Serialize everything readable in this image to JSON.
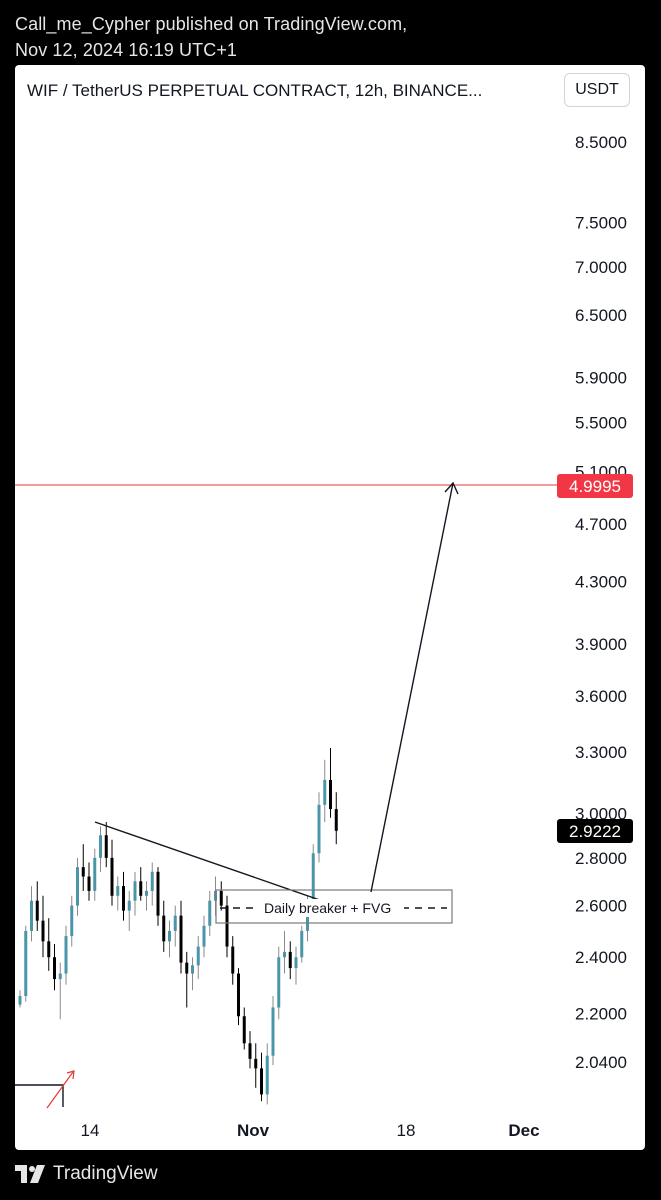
{
  "publisher": {
    "line1": "Call_me_Cypher published on TradingView.com,",
    "line2": "Nov 12, 2024 16:19 UTC+1"
  },
  "header": {
    "symbol_title": "WIF / TetherUS PERPETUAL CONTRACT, 12h, BINANCE...",
    "currency": "USDT"
  },
  "footer": {
    "brand": "TradingView"
  },
  "colors": {
    "bull": "#4a95a8",
    "bear": "#000000",
    "level_line": "#e53935",
    "level_label_bg": "#f23645",
    "price_label_bg": "#000000"
  },
  "chart_data": {
    "type": "candlestick",
    "interval": "12h",
    "y_scale": "log",
    "y_tick_labels": [
      "8.5000",
      "7.5000",
      "7.0000",
      "6.5000",
      "5.9000",
      "5.5000",
      "5.1000",
      "4.7000",
      "4.3000",
      "3.9000",
      "3.6000",
      "3.3000",
      "3.0000",
      "2.8000",
      "2.6000",
      "2.4000",
      "2.2000",
      "2.0400"
    ],
    "x_tick_labels": [
      "14",
      "Nov",
      "18",
      "Dec"
    ],
    "last_price": "2.9222",
    "level_price": "4.9995",
    "annotations": {
      "zone_label": "Daily breaker + FVG"
    },
    "candles": [
      [
        2.23,
        2.28,
        2.22,
        2.26
      ],
      [
        2.26,
        2.52,
        2.24,
        2.5
      ],
      [
        2.5,
        2.68,
        2.46,
        2.62
      ],
      [
        2.62,
        2.7,
        2.5,
        2.54
      ],
      [
        2.54,
        2.64,
        2.4,
        2.46
      ],
      [
        2.46,
        2.55,
        2.35,
        2.4
      ],
      [
        2.4,
        2.45,
        2.28,
        2.32
      ],
      [
        2.32,
        2.38,
        2.18,
        2.34
      ],
      [
        2.34,
        2.52,
        2.3,
        2.48
      ],
      [
        2.48,
        2.64,
        2.44,
        2.6
      ],
      [
        2.6,
        2.8,
        2.56,
        2.76
      ],
      [
        2.76,
        2.86,
        2.66,
        2.72
      ],
      [
        2.72,
        2.78,
        2.62,
        2.66
      ],
      [
        2.66,
        2.84,
        2.62,
        2.8
      ],
      [
        2.8,
        2.94,
        2.74,
        2.9
      ],
      [
        2.9,
        2.96,
        2.76,
        2.8
      ],
      [
        2.8,
        2.88,
        2.6,
        2.64
      ],
      [
        2.64,
        2.72,
        2.58,
        2.68
      ],
      [
        2.68,
        2.74,
        2.54,
        2.58
      ],
      [
        2.58,
        2.66,
        2.5,
        2.62
      ],
      [
        2.62,
        2.74,
        2.56,
        2.7
      ],
      [
        2.7,
        2.76,
        2.62,
        2.64
      ],
      [
        2.64,
        2.7,
        2.58,
        2.66
      ],
      [
        2.66,
        2.78,
        2.6,
        2.74
      ],
      [
        2.74,
        2.76,
        2.52,
        2.56
      ],
      [
        2.56,
        2.62,
        2.42,
        2.46
      ],
      [
        2.46,
        2.54,
        2.4,
        2.5
      ],
      [
        2.5,
        2.6,
        2.44,
        2.56
      ],
      [
        2.56,
        2.62,
        2.34,
        2.38
      ],
      [
        2.38,
        2.42,
        2.22,
        2.34
      ],
      [
        2.34,
        2.4,
        2.28,
        2.37
      ],
      [
        2.37,
        2.48,
        2.32,
        2.44
      ],
      [
        2.44,
        2.56,
        2.4,
        2.52
      ],
      [
        2.52,
        2.66,
        2.48,
        2.62
      ],
      [
        2.62,
        2.72,
        2.56,
        2.66
      ],
      [
        2.66,
        2.7,
        2.58,
        2.6
      ],
      [
        2.6,
        2.64,
        2.4,
        2.44
      ],
      [
        2.44,
        2.48,
        2.3,
        2.34
      ],
      [
        2.34,
        2.36,
        2.16,
        2.19
      ],
      [
        2.19,
        2.22,
        2.08,
        2.1
      ],
      [
        2.1,
        2.14,
        2.02,
        2.05
      ],
      [
        2.05,
        2.1,
        1.96,
        2.02
      ],
      [
        2.02,
        2.07,
        1.92,
        1.94
      ],
      [
        1.94,
        2.1,
        1.91,
        2.06
      ],
      [
        2.06,
        2.26,
        2.03,
        2.22
      ],
      [
        2.22,
        2.44,
        2.18,
        2.4
      ],
      [
        2.4,
        2.5,
        2.34,
        2.42
      ],
      [
        2.42,
        2.46,
        2.32,
        2.36
      ],
      [
        2.36,
        2.44,
        2.3,
        2.4
      ],
      [
        2.4,
        2.52,
        2.38,
        2.5
      ],
      [
        2.5,
        2.64,
        2.46,
        2.6
      ],
      [
        2.6,
        2.86,
        2.58,
        2.82
      ],
      [
        2.82,
        3.1,
        2.78,
        3.04
      ],
      [
        3.04,
        3.26,
        2.96,
        3.16
      ],
      [
        3.16,
        3.32,
        2.98,
        3.02
      ],
      [
        3.02,
        3.1,
        2.86,
        2.92
      ]
    ]
  }
}
